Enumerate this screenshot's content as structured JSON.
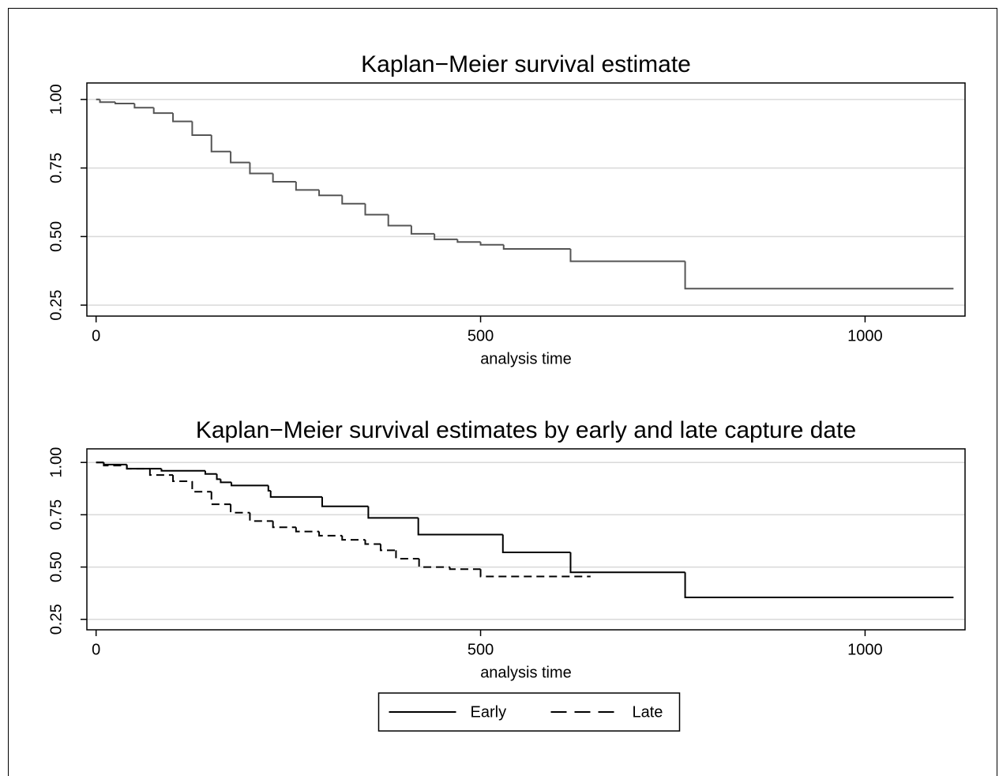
{
  "chart_data": [
    {
      "type": "step",
      "title": "Kaplan−Meier survival estimate",
      "x_label": "analysis time",
      "xlim": [
        -12,
        1130
      ],
      "ylim": [
        0.21,
        1.06
      ],
      "xticks": [
        0,
        500,
        1000
      ],
      "yticks": [
        {
          "value": 0.25,
          "label": "0.25"
        },
        {
          "value": 0.5,
          "label": "0.50"
        },
        {
          "value": 0.75,
          "label": "0.75"
        },
        {
          "value": 1,
          "label": "1.00"
        }
      ],
      "grid": true,
      "series": [
        {
          "color": "#555555",
          "dash": false,
          "x": [
            0,
            5,
            25,
            50,
            75,
            100,
            125,
            150,
            175,
            200,
            230,
            260,
            290,
            320,
            350,
            380,
            410,
            440,
            470,
            500,
            530,
            617,
            766,
            1115
          ],
          "values": [
            1.0,
            0.99,
            0.985,
            0.97,
            0.95,
            0.92,
            0.87,
            0.81,
            0.77,
            0.73,
            0.7,
            0.67,
            0.65,
            0.62,
            0.58,
            0.54,
            0.51,
            0.49,
            0.48,
            0.47,
            0.455,
            0.41,
            0.31,
            0.31
          ]
        }
      ]
    },
    {
      "type": "step",
      "title": "Kaplan−Meier survival estimates by early and late capture date",
      "x_label": "analysis time",
      "xlim": [
        -12,
        1130
      ],
      "ylim": [
        0.2,
        1.065
      ],
      "xticks": [
        0,
        500,
        1000
      ],
      "yticks": [
        {
          "value": 0.25,
          "label": "0.25"
        },
        {
          "value": 0.5,
          "label": "0.50"
        },
        {
          "value": 0.75,
          "label": "0.75"
        },
        {
          "value": 1,
          "label": "1.00"
        }
      ],
      "grid": true,
      "legend": "bottom",
      "series": [
        {
          "name": "Early",
          "color": "#000000",
          "dash": false,
          "x": [
            0,
            10,
            40,
            85,
            142,
            157,
            162,
            176,
            224,
            227,
            294,
            354,
            419,
            529,
            617,
            766,
            1115
          ],
          "values": [
            1.0,
            0.99,
            0.97,
            0.96,
            0.945,
            0.92,
            0.905,
            0.89,
            0.865,
            0.835,
            0.79,
            0.735,
            0.655,
            0.57,
            0.475,
            0.355,
            0.355
          ]
        },
        {
          "name": "Late",
          "color": "#000000",
          "dash": true,
          "x": [
            0,
            10,
            40,
            70,
            100,
            125,
            150,
            175,
            200,
            230,
            260,
            290,
            320,
            350,
            370,
            390,
            420,
            460,
            500,
            643
          ],
          "values": [
            1.0,
            0.985,
            0.97,
            0.94,
            0.91,
            0.86,
            0.8,
            0.76,
            0.72,
            0.69,
            0.67,
            0.65,
            0.63,
            0.61,
            0.58,
            0.54,
            0.5,
            0.49,
            0.455,
            0.455
          ]
        }
      ]
    }
  ]
}
